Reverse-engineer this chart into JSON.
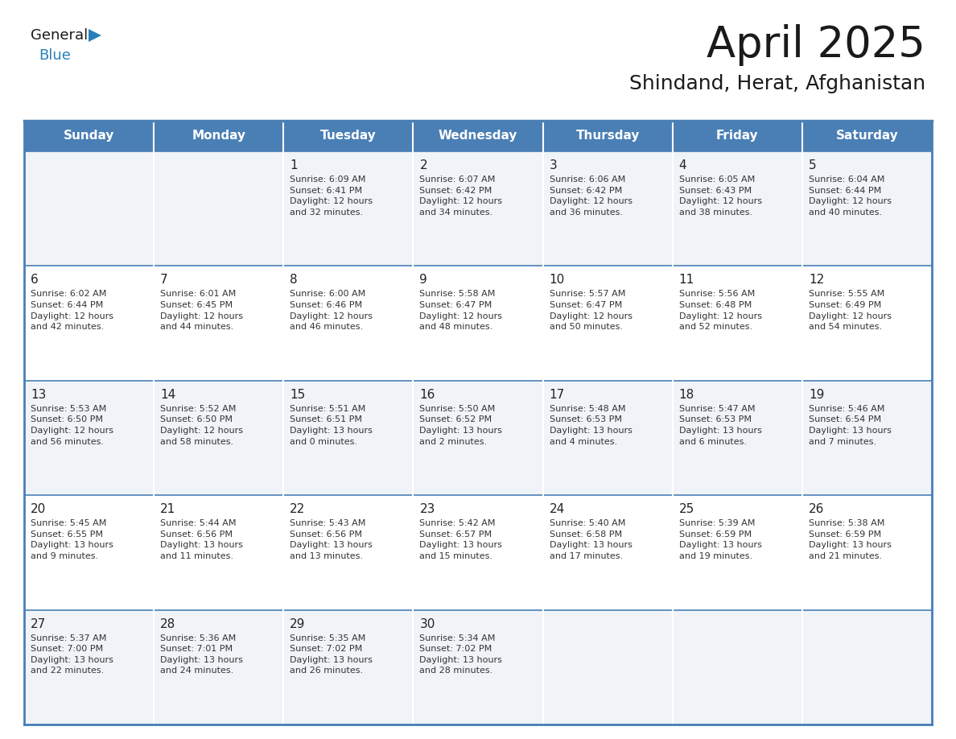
{
  "title": "April 2025",
  "subtitle": "Shindand, Herat, Afghanistan",
  "days_of_week": [
    "Sunday",
    "Monday",
    "Tuesday",
    "Wednesday",
    "Thursday",
    "Friday",
    "Saturday"
  ],
  "header_bg": "#4a7fb5",
  "header_text": "#FFFFFF",
  "row_bg_odd": "#FFFFFF",
  "row_bg_even": "#f0f4f8",
  "day_num_color": "#222222",
  "info_text_color": "#333333",
  "border_color": "#4a7fb5",
  "line_color": "#4a7fb5",
  "title_color": "#1a1a1a",
  "subtitle_color": "#1a1a1a",
  "logo_general_color": "#1a1a1a",
  "logo_blue_color": "#2980b9",
  "triangle_color": "#2980b9",
  "calendar": [
    [
      {
        "day": "",
        "info": ""
      },
      {
        "day": "",
        "info": ""
      },
      {
        "day": "1",
        "info": "Sunrise: 6:09 AM\nSunset: 6:41 PM\nDaylight: 12 hours\nand 32 minutes."
      },
      {
        "day": "2",
        "info": "Sunrise: 6:07 AM\nSunset: 6:42 PM\nDaylight: 12 hours\nand 34 minutes."
      },
      {
        "day": "3",
        "info": "Sunrise: 6:06 AM\nSunset: 6:42 PM\nDaylight: 12 hours\nand 36 minutes."
      },
      {
        "day": "4",
        "info": "Sunrise: 6:05 AM\nSunset: 6:43 PM\nDaylight: 12 hours\nand 38 minutes."
      },
      {
        "day": "5",
        "info": "Sunrise: 6:04 AM\nSunset: 6:44 PM\nDaylight: 12 hours\nand 40 minutes."
      }
    ],
    [
      {
        "day": "6",
        "info": "Sunrise: 6:02 AM\nSunset: 6:44 PM\nDaylight: 12 hours\nand 42 minutes."
      },
      {
        "day": "7",
        "info": "Sunrise: 6:01 AM\nSunset: 6:45 PM\nDaylight: 12 hours\nand 44 minutes."
      },
      {
        "day": "8",
        "info": "Sunrise: 6:00 AM\nSunset: 6:46 PM\nDaylight: 12 hours\nand 46 minutes."
      },
      {
        "day": "9",
        "info": "Sunrise: 5:58 AM\nSunset: 6:47 PM\nDaylight: 12 hours\nand 48 minutes."
      },
      {
        "day": "10",
        "info": "Sunrise: 5:57 AM\nSunset: 6:47 PM\nDaylight: 12 hours\nand 50 minutes."
      },
      {
        "day": "11",
        "info": "Sunrise: 5:56 AM\nSunset: 6:48 PM\nDaylight: 12 hours\nand 52 minutes."
      },
      {
        "day": "12",
        "info": "Sunrise: 5:55 AM\nSunset: 6:49 PM\nDaylight: 12 hours\nand 54 minutes."
      }
    ],
    [
      {
        "day": "13",
        "info": "Sunrise: 5:53 AM\nSunset: 6:50 PM\nDaylight: 12 hours\nand 56 minutes."
      },
      {
        "day": "14",
        "info": "Sunrise: 5:52 AM\nSunset: 6:50 PM\nDaylight: 12 hours\nand 58 minutes."
      },
      {
        "day": "15",
        "info": "Sunrise: 5:51 AM\nSunset: 6:51 PM\nDaylight: 13 hours\nand 0 minutes."
      },
      {
        "day": "16",
        "info": "Sunrise: 5:50 AM\nSunset: 6:52 PM\nDaylight: 13 hours\nand 2 minutes."
      },
      {
        "day": "17",
        "info": "Sunrise: 5:48 AM\nSunset: 6:53 PM\nDaylight: 13 hours\nand 4 minutes."
      },
      {
        "day": "18",
        "info": "Sunrise: 5:47 AM\nSunset: 6:53 PM\nDaylight: 13 hours\nand 6 minutes."
      },
      {
        "day": "19",
        "info": "Sunrise: 5:46 AM\nSunset: 6:54 PM\nDaylight: 13 hours\nand 7 minutes."
      }
    ],
    [
      {
        "day": "20",
        "info": "Sunrise: 5:45 AM\nSunset: 6:55 PM\nDaylight: 13 hours\nand 9 minutes."
      },
      {
        "day": "21",
        "info": "Sunrise: 5:44 AM\nSunset: 6:56 PM\nDaylight: 13 hours\nand 11 minutes."
      },
      {
        "day": "22",
        "info": "Sunrise: 5:43 AM\nSunset: 6:56 PM\nDaylight: 13 hours\nand 13 minutes."
      },
      {
        "day": "23",
        "info": "Sunrise: 5:42 AM\nSunset: 6:57 PM\nDaylight: 13 hours\nand 15 minutes."
      },
      {
        "day": "24",
        "info": "Sunrise: 5:40 AM\nSunset: 6:58 PM\nDaylight: 13 hours\nand 17 minutes."
      },
      {
        "day": "25",
        "info": "Sunrise: 5:39 AM\nSunset: 6:59 PM\nDaylight: 13 hours\nand 19 minutes."
      },
      {
        "day": "26",
        "info": "Sunrise: 5:38 AM\nSunset: 6:59 PM\nDaylight: 13 hours\nand 21 minutes."
      }
    ],
    [
      {
        "day": "27",
        "info": "Sunrise: 5:37 AM\nSunset: 7:00 PM\nDaylight: 13 hours\nand 22 minutes."
      },
      {
        "day": "28",
        "info": "Sunrise: 5:36 AM\nSunset: 7:01 PM\nDaylight: 13 hours\nand 24 minutes."
      },
      {
        "day": "29",
        "info": "Sunrise: 5:35 AM\nSunset: 7:02 PM\nDaylight: 13 hours\nand 26 minutes."
      },
      {
        "day": "30",
        "info": "Sunrise: 5:34 AM\nSunset: 7:02 PM\nDaylight: 13 hours\nand 28 minutes."
      },
      {
        "day": "",
        "info": ""
      },
      {
        "day": "",
        "info": ""
      },
      {
        "day": "",
        "info": ""
      }
    ]
  ]
}
